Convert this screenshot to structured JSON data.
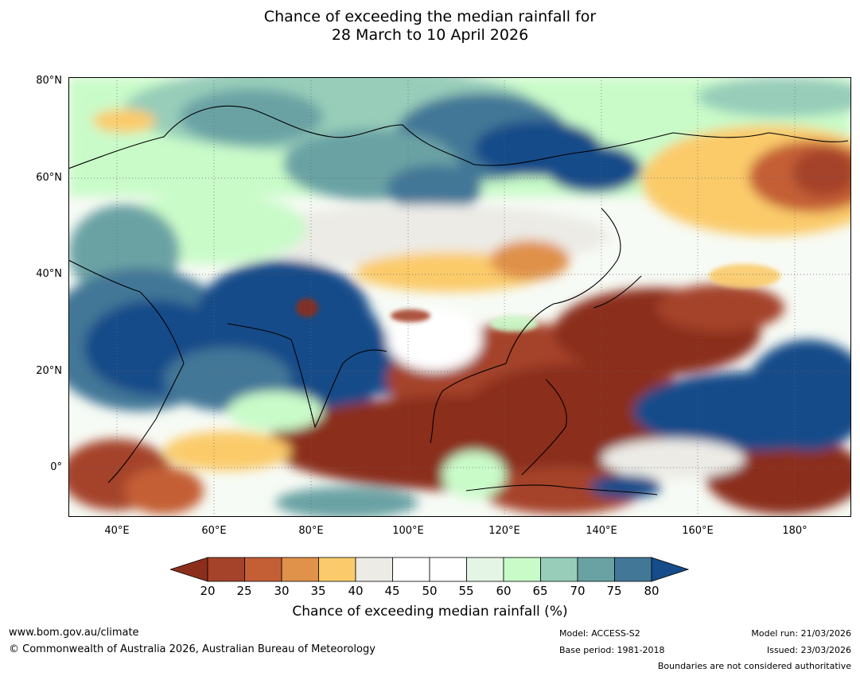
{
  "title": {
    "line1": "Chance of exceeding the median rainfall for",
    "line2": "28 March to 10 April 2026"
  },
  "map": {
    "latitude_labels": [
      "80°N",
      "60°N",
      "40°N",
      "20°N",
      "0°"
    ],
    "longitude_labels": [
      "40°E",
      "60°E",
      "80°E",
      "100°E",
      "120°E",
      "140°E",
      "160°E",
      "180°"
    ]
  },
  "colorbar": {
    "ticks": [
      "20",
      "25",
      "30",
      "35",
      "40",
      "45",
      "50",
      "55",
      "60",
      "65",
      "70",
      "75",
      "80"
    ],
    "colors": [
      "#8b2f1c",
      "#a5432a",
      "#c45f35",
      "#e0914a",
      "#fbcb6b",
      "#ecebe6",
      "#ffffff",
      "#ffffff",
      "#e5f5e5",
      "#c9fbc9",
      "#97cdb9",
      "#6aa2a4",
      "#427797",
      "#154c89"
    ],
    "label": "Chance of exceeding median rainfall (%)"
  },
  "footer": {
    "website": "www.bom.gov.au/climate",
    "copyright": "© Commonwealth of Australia 2026, Australian Bureau of Meteorology",
    "model": "Model: ACCESS-S2",
    "base_period": "Base period: 1981-2018",
    "model_run": "Model run: 21/03/2026",
    "issued": "Issued: 23/03/2026",
    "disclaimer": "Boundaries are not considered authoritative"
  }
}
